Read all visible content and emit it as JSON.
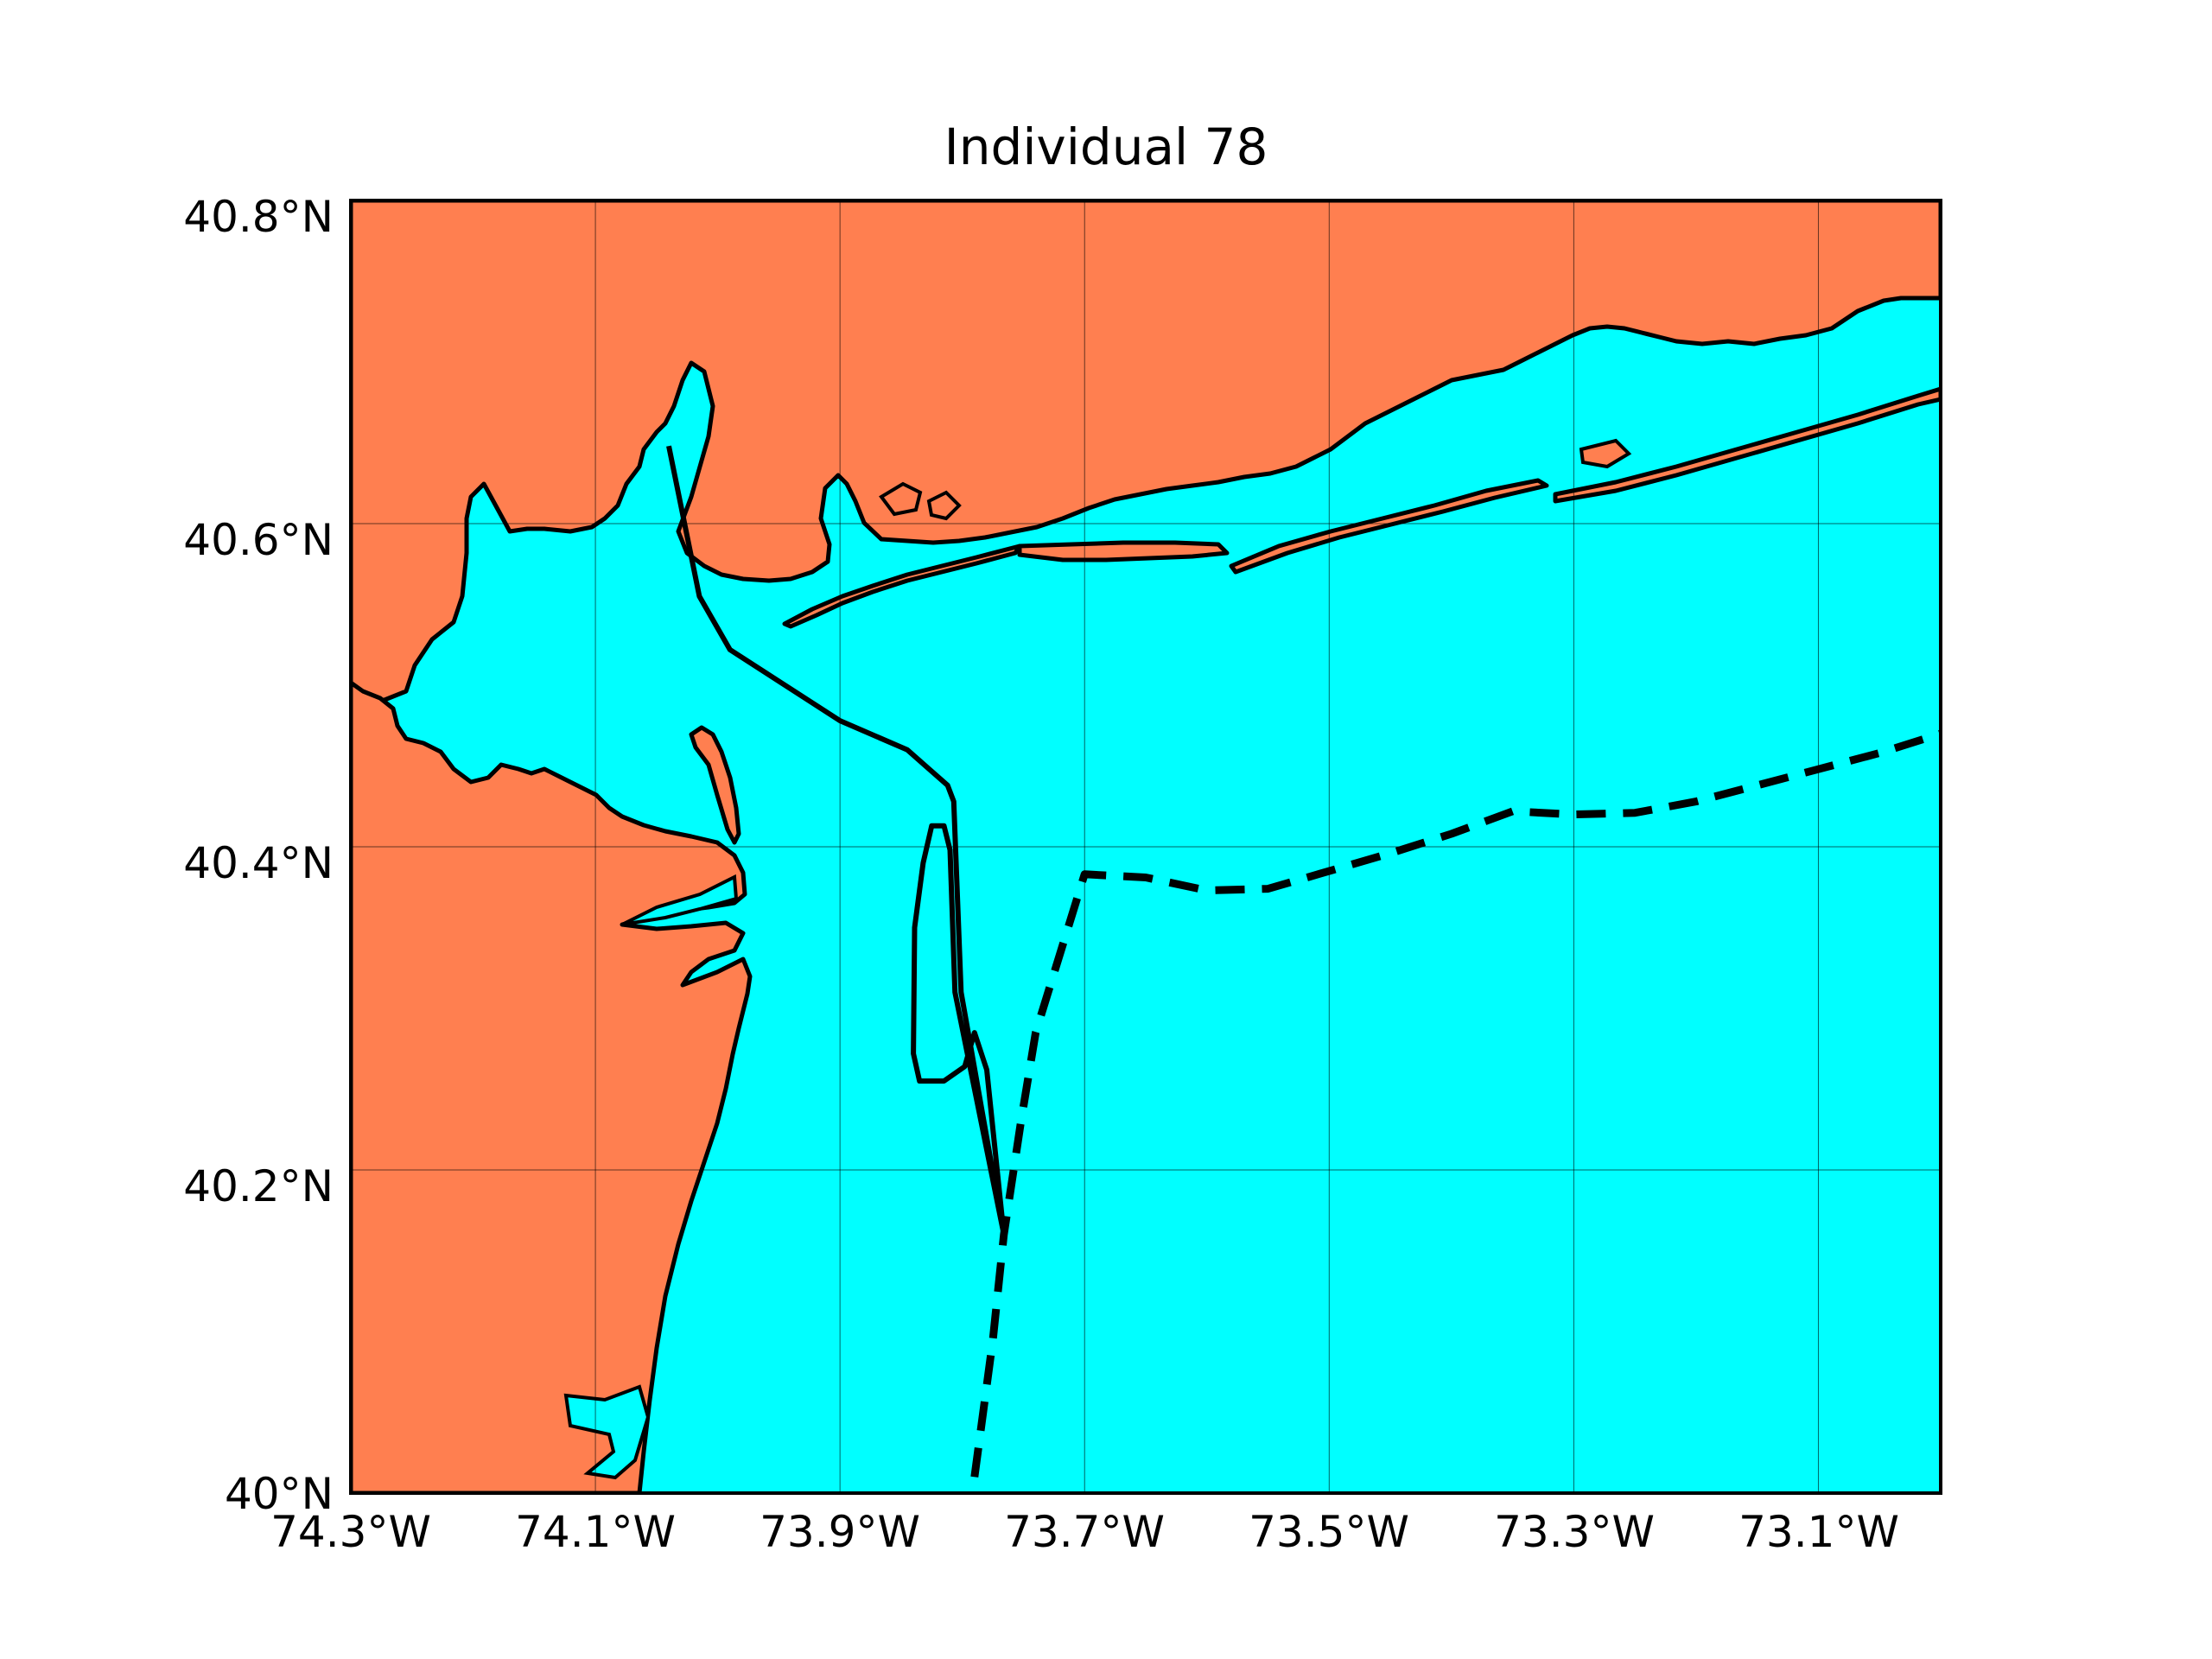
{
  "title": "Individual 78",
  "map": {
    "lon_range": [
      -74.3,
      -73.0
    ],
    "lat_range": [
      40.0,
      40.8
    ],
    "x_ticks": [
      "74.3°W",
      "74.1°W",
      "73.9°W",
      "73.7°W",
      "73.5°W",
      "73.3°W",
      "73.1°W"
    ],
    "y_ticks": [
      "40.8°N",
      "40.6°N",
      "40.4°N",
      "40.2°N",
      "40°N"
    ],
    "grid": true,
    "colors": {
      "land": "#ff7f50",
      "water": "#00ffff",
      "coast": "#000000",
      "track": "#000000"
    }
  },
  "tracks": [
    {
      "style": "solid",
      "points": [
        [
          -74.04,
          40.648
        ],
        [
          -74.015,
          40.555
        ],
        [
          -73.99,
          40.522
        ],
        [
          -73.9,
          40.478
        ],
        [
          -73.845,
          40.46
        ],
        [
          -73.812,
          40.438
        ],
        [
          -73.807,
          40.428
        ],
        [
          -73.801,
          40.31
        ],
        [
          -73.766,
          40.16
        ],
        [
          -73.78,
          40.262
        ],
        [
          -73.79,
          40.285
        ],
        [
          -73.798,
          40.264
        ],
        [
          -73.815,
          40.255
        ],
        [
          -73.835,
          40.255
        ],
        [
          -73.84,
          40.272
        ],
        [
          -73.839,
          40.35
        ],
        [
          -73.832,
          40.39
        ],
        [
          -73.825,
          40.413
        ],
        [
          -73.815,
          40.413
        ],
        [
          -73.81,
          40.398
        ],
        [
          -73.806,
          40.31
        ],
        [
          -73.766,
          40.16
        ]
      ]
    },
    {
      "style": "dashed",
      "points": [
        [
          -73.79,
          40.01
        ],
        [
          -73.775,
          40.095
        ],
        [
          -73.766,
          40.16
        ],
        [
          -73.752,
          40.23
        ],
        [
          -73.74,
          40.285
        ],
        [
          -73.7,
          40.383
        ],
        [
          -73.65,
          40.381
        ],
        [
          -73.6,
          40.373
        ],
        [
          -73.55,
          40.374
        ],
        [
          -73.5,
          40.385
        ],
        [
          -73.45,
          40.396
        ],
        [
          -73.4,
          40.408
        ],
        [
          -73.35,
          40.422
        ],
        [
          -73.3,
          40.42
        ],
        [
          -73.25,
          40.421
        ],
        [
          -73.2,
          40.428
        ],
        [
          -73.15,
          40.438
        ],
        [
          -73.1,
          40.448
        ],
        [
          -73.05,
          40.458
        ],
        [
          -73.0,
          40.47
        ]
      ]
    }
  ]
}
